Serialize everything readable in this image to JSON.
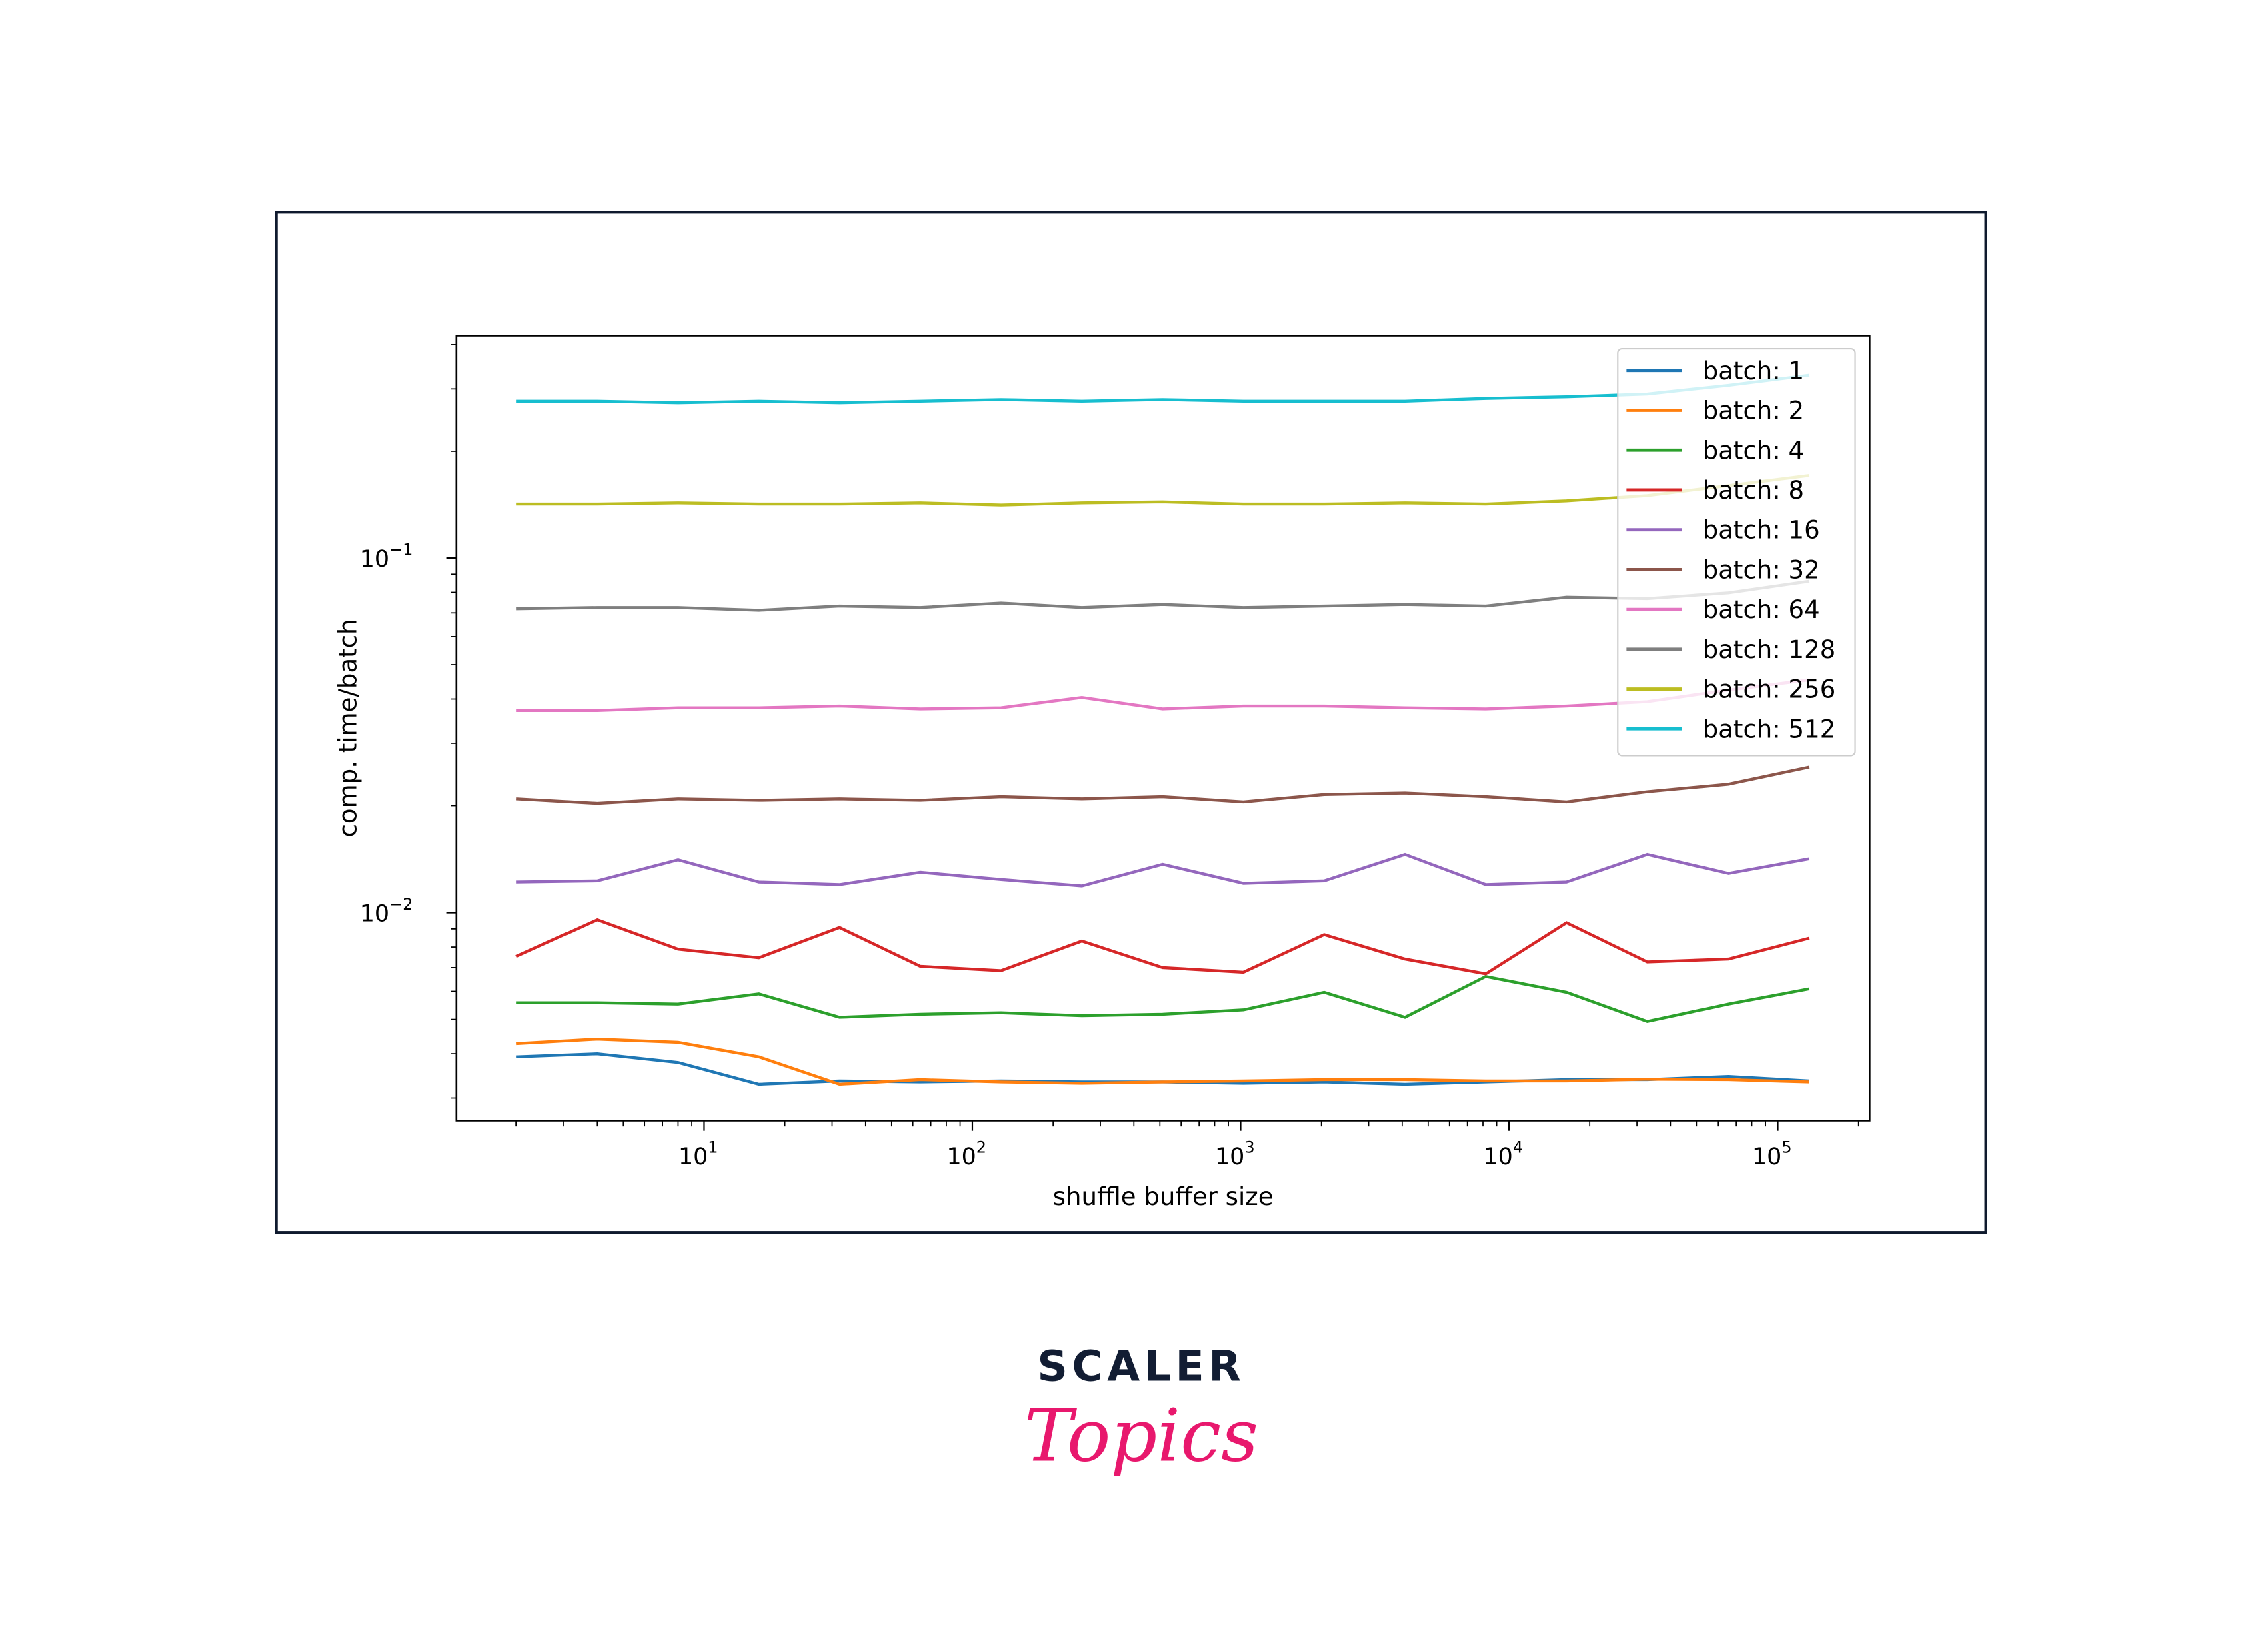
{
  "chart_data": {
    "type": "line",
    "title": "",
    "xlabel": "shuffle buffer size",
    "ylabel": "comp. time/batch",
    "xscale": "log",
    "yscale": "log",
    "xlim": [
      1.2,
      220000
    ],
    "ylim": [
      0.00259,
      0.424
    ],
    "x_ticks": [
      {
        "value": 10,
        "label": "10",
        "exp": "1"
      },
      {
        "value": 100,
        "label": "10",
        "exp": "2"
      },
      {
        "value": 1000,
        "label": "10",
        "exp": "3"
      },
      {
        "value": 10000,
        "label": "10",
        "exp": "4"
      },
      {
        "value": 100000,
        "label": "10",
        "exp": "5"
      }
    ],
    "y_ticks": [
      {
        "value": 0.1,
        "label": "10",
        "exp": "−1"
      },
      {
        "value": 0.01,
        "label": "10",
        "exp": "−2"
      }
    ],
    "legend_position": "top-right",
    "x": [
      2,
      4,
      8,
      16,
      32,
      64,
      128,
      256,
      512,
      1024,
      2048,
      4096,
      8192,
      16384,
      32768,
      65536,
      131072
    ],
    "series": [
      {
        "name": "batch: 1",
        "color": "#1f77b4",
        "values": [
          0.00392,
          0.004,
          0.00378,
          0.00328,
          0.00335,
          0.00333,
          0.00335,
          0.00333,
          0.00333,
          0.0033,
          0.00333,
          0.00328,
          0.00333,
          0.00338,
          0.00338,
          0.00345,
          0.00335
        ]
      },
      {
        "name": "batch: 2",
        "color": "#ff7f0e",
        "values": [
          0.00427,
          0.0044,
          0.00431,
          0.00392,
          0.00328,
          0.00338,
          0.00333,
          0.0033,
          0.00333,
          0.00335,
          0.00338,
          0.00338,
          0.00335,
          0.00335,
          0.00339,
          0.00338,
          0.00333
        ]
      },
      {
        "name": "batch: 4",
        "color": "#2ca02c",
        "values": [
          0.00557,
          0.00557,
          0.00552,
          0.0059,
          0.00507,
          0.00517,
          0.00522,
          0.00512,
          0.00517,
          0.00532,
          0.00596,
          0.00507,
          0.00661,
          0.00596,
          0.00493,
          0.00552,
          0.0061
        ]
      },
      {
        "name": "batch: 8",
        "color": "#d62728",
        "values": [
          0.00753,
          0.00955,
          0.00789,
          0.00746,
          0.00908,
          0.00706,
          0.00686,
          0.00832,
          0.007,
          0.00679,
          0.00867,
          0.0074,
          0.00672,
          0.00937,
          0.00726,
          0.0074,
          0.00848
        ]
      },
      {
        "name": "batch: 16",
        "color": "#9467bd",
        "values": [
          0.0122,
          0.0123,
          0.0141,
          0.0122,
          0.012,
          0.013,
          0.0124,
          0.0119,
          0.0137,
          0.0121,
          0.0123,
          0.0146,
          0.012,
          0.0122,
          0.0146,
          0.0129,
          0.0142
        ]
      },
      {
        "name": "batch: 32",
        "color": "#8c564b",
        "values": [
          0.0209,
          0.0203,
          0.0209,
          0.0207,
          0.0209,
          0.0207,
          0.0212,
          0.0209,
          0.0212,
          0.0205,
          0.0215,
          0.0217,
          0.0212,
          0.0205,
          0.0219,
          0.023,
          0.0257
        ]
      },
      {
        "name": "batch: 64",
        "color": "#e377c2",
        "values": [
          0.0371,
          0.0371,
          0.0378,
          0.0378,
          0.0382,
          0.0375,
          0.0378,
          0.0404,
          0.0375,
          0.0382,
          0.0382,
          0.0378,
          0.0375,
          0.0382,
          0.0393,
          0.0424,
          0.0453
        ]
      },
      {
        "name": "batch: 128",
        "color": "#7f7f7f",
        "values": [
          0.0719,
          0.0725,
          0.0725,
          0.0712,
          0.0732,
          0.0725,
          0.0746,
          0.0725,
          0.0739,
          0.0725,
          0.0732,
          0.0739,
          0.0732,
          0.0775,
          0.0768,
          0.0797,
          0.086
        ]
      },
      {
        "name": "batch: 256",
        "color": "#bcbd22",
        "values": [
          0.142,
          0.142,
          0.143,
          0.142,
          0.142,
          0.143,
          0.141,
          0.143,
          0.144,
          0.142,
          0.142,
          0.143,
          0.142,
          0.145,
          0.15,
          0.16,
          0.171
        ]
      },
      {
        "name": "batch: 512",
        "color": "#17becf",
        "values": [
          0.277,
          0.277,
          0.274,
          0.277,
          0.274,
          0.277,
          0.28,
          0.277,
          0.28,
          0.277,
          0.277,
          0.277,
          0.282,
          0.285,
          0.29,
          0.307,
          0.328
        ]
      }
    ]
  },
  "logo": {
    "top": "SCALER",
    "bottom": "Topics"
  },
  "colors": {
    "frame": "#0f1a2e",
    "logo_dark": "#121d33",
    "logo_pink": "#e8186d"
  }
}
